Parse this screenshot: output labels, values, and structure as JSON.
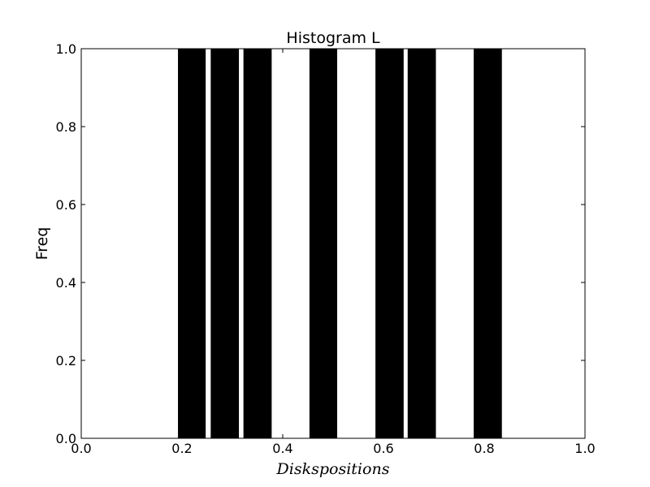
{
  "chart_data": {
    "type": "bar",
    "title": "Histogram L",
    "xlabel": "Diskspositions",
    "ylabel": "Freq",
    "xlim": [
      0.0,
      1.0
    ],
    "ylim": [
      0.0,
      1.0
    ],
    "grid": false,
    "xticks": [
      "0.0",
      "0.2",
      "0.4",
      "0.6",
      "0.8",
      "1.0"
    ],
    "yticks": [
      "0.0",
      "0.2",
      "0.4",
      "0.6",
      "0.8",
      "1.0"
    ],
    "bars": [
      {
        "x0": 0.192,
        "x1": 0.247,
        "value": 1.0
      },
      {
        "x0": 0.257,
        "x1": 0.313,
        "value": 1.0
      },
      {
        "x0": 0.322,
        "x1": 0.378,
        "value": 1.0
      },
      {
        "x0": 0.453,
        "x1": 0.508,
        "value": 1.0
      },
      {
        "x0": 0.584,
        "x1": 0.64,
        "value": 1.0
      },
      {
        "x0": 0.648,
        "x1": 0.704,
        "value": 1.0
      },
      {
        "x0": 0.779,
        "x1": 0.835,
        "value": 1.0
      }
    ],
    "bar_color": "#000000"
  }
}
